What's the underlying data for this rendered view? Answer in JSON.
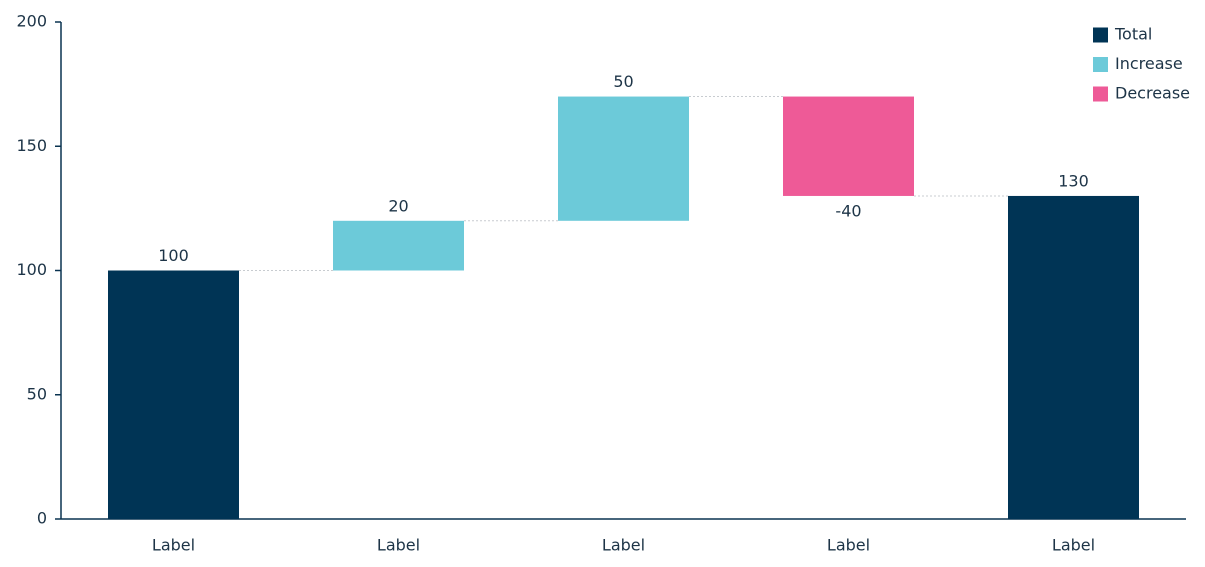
{
  "chart_data": {
    "type": "waterfall",
    "categories": [
      "Label",
      "Label",
      "Label",
      "Label",
      "Label"
    ],
    "series": [
      {
        "name": "Total",
        "color": "#003455",
        "values": [
          100,
          null,
          null,
          null,
          130
        ]
      },
      {
        "name": "Increase",
        "color": "#6ccad9",
        "values": [
          null,
          20,
          50,
          null,
          null
        ]
      },
      {
        "name": "Decrease",
        "color": "#ee5a97",
        "values": [
          null,
          null,
          null,
          -40,
          null
        ]
      }
    ],
    "ylim": [
      0,
      200
    ],
    "yticks": [
      0,
      50,
      100,
      150,
      200
    ],
    "grid": false,
    "legend": "top-right"
  }
}
